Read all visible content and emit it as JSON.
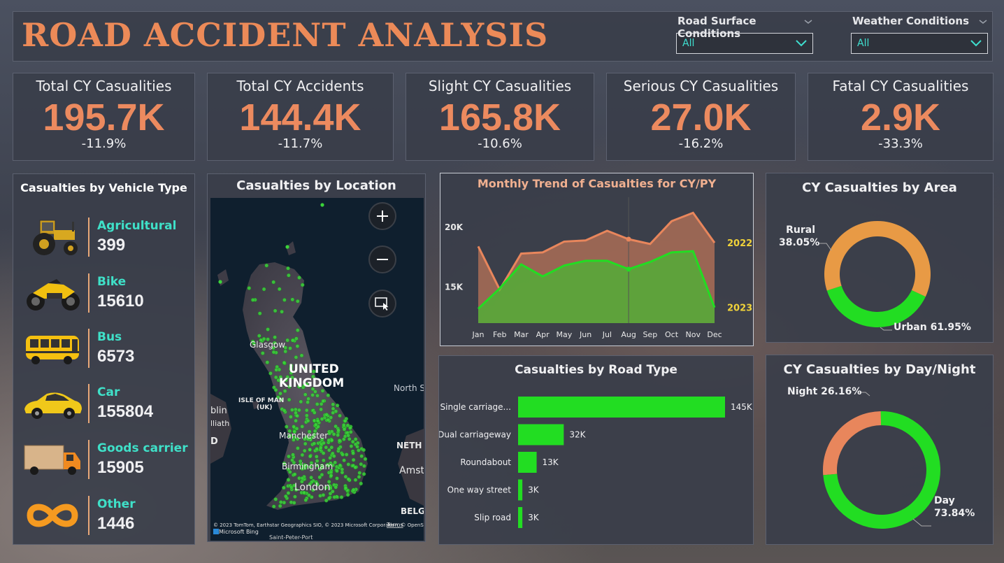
{
  "header": {
    "title": "ROAD ACCIDENT ANALYSIS"
  },
  "filters": [
    {
      "label": "Road Surface Conditions",
      "value": "All"
    },
    {
      "label": "Weather Conditions",
      "value": "All"
    }
  ],
  "kpis": [
    {
      "title": "Total CY Casualities",
      "value": "195.7K",
      "change": "-11.9%"
    },
    {
      "title": "Total CY Accidents",
      "value": "144.4K",
      "change": "-11.7%"
    },
    {
      "title": "Slight CY Casualities",
      "value": "165.8K",
      "change": "-10.6%"
    },
    {
      "title": "Serious CY Casualities",
      "value": "27.0K",
      "change": "-16.2%"
    },
    {
      "title": "Fatal CY Casualities",
      "value": "2.9K",
      "change": "-33.3%"
    }
  ],
  "vehicles": {
    "title": "Casualties by Vehicle Type",
    "items": [
      {
        "name": "Agricultural",
        "count": "399",
        "icon": "tractor-icon"
      },
      {
        "name": "Bike",
        "count": "15610",
        "icon": "motorbike-icon"
      },
      {
        "name": "Bus",
        "count": "6573",
        "icon": "bus-icon"
      },
      {
        "name": "Car",
        "count": "155804",
        "icon": "car-icon"
      },
      {
        "name": "Goods carrier",
        "count": "15905",
        "icon": "truck-icon"
      },
      {
        "name": "Other",
        "count": "1446",
        "icon": "infinity-icon"
      }
    ]
  },
  "map": {
    "title": "Casualties by Location",
    "labels": {
      "glasgow": "Glasgow",
      "uk_line1": "UNITED",
      "uk_line2": "KINGDOM",
      "isle1": "ISLE OF MAN",
      "isle2": "(UK)",
      "manchester": "Manchester",
      "birmingham": "Birmingham",
      "london": "London",
      "north_sea": "North S",
      "neth": "NETH",
      "amst": "Amst",
      "belg": "BELG",
      "dublin": "blin",
      "dublin2": "lliath",
      "d": "D"
    },
    "attribution": "© 2023 TomTom, Earthstar Geographics SIO, © 2023 Microsoft Corporation, © OpenStreetMap",
    "terms": "Terms",
    "brand": "Microsoft Bing",
    "saint": "Saint-Peter-Port"
  },
  "chart_data": [
    {
      "type": "area",
      "title": "Monthly Trend of Casualties for CY/PY",
      "x": [
        "Jan",
        "Feb",
        "Mar",
        "Apr",
        "May",
        "Jun",
        "Jul",
        "Aug",
        "Sep",
        "Oct",
        "Nov",
        "Dec"
      ],
      "series": [
        {
          "name": "2022",
          "color": "#e8865c",
          "values": [
            18400,
            14800,
            17800,
            17900,
            18800,
            18900,
            19700,
            19000,
            18600,
            20500,
            21200,
            18700
          ]
        },
        {
          "name": "2023",
          "color": "#22dd22",
          "values": [
            13200,
            14900,
            16900,
            15900,
            16800,
            17200,
            17200,
            16500,
            17100,
            17900,
            18000,
            13300
          ]
        }
      ],
      "y_ticks": [
        "15K",
        "20K"
      ],
      "ylim": [
        12000,
        22500
      ],
      "hover_line_at": "Aug"
    },
    {
      "type": "bar",
      "orientation": "horizontal",
      "title": "Casualties by Road Type",
      "categories": [
        "Single carriage...",
        "Dual carriageway",
        "Roundabout",
        "One way street",
        "Slip road"
      ],
      "values": [
        145000,
        32000,
        13000,
        3000,
        3000
      ],
      "value_labels": [
        "145K",
        "32K",
        "13K",
        "3K",
        "3K"
      ],
      "color": "#22dd22"
    },
    {
      "type": "pie",
      "donut": true,
      "title": "CY Casualties by Area",
      "slices": [
        {
          "label": "Rural",
          "pct": "38.05%",
          "value": 38.05,
          "color": "#22dd22"
        },
        {
          "label": "Urban",
          "pct": "61.95%",
          "value": 61.95,
          "color": "#e89a45"
        }
      ]
    },
    {
      "type": "pie",
      "donut": true,
      "title": "CY Casualties by Day/Night",
      "slices": [
        {
          "label": "Night",
          "pct": "26.16%",
          "value": 26.16,
          "color": "#e8865c"
        },
        {
          "label": "Day",
          "pct": "73.84%",
          "value": 73.84,
          "color": "#22dd22"
        }
      ]
    }
  ]
}
